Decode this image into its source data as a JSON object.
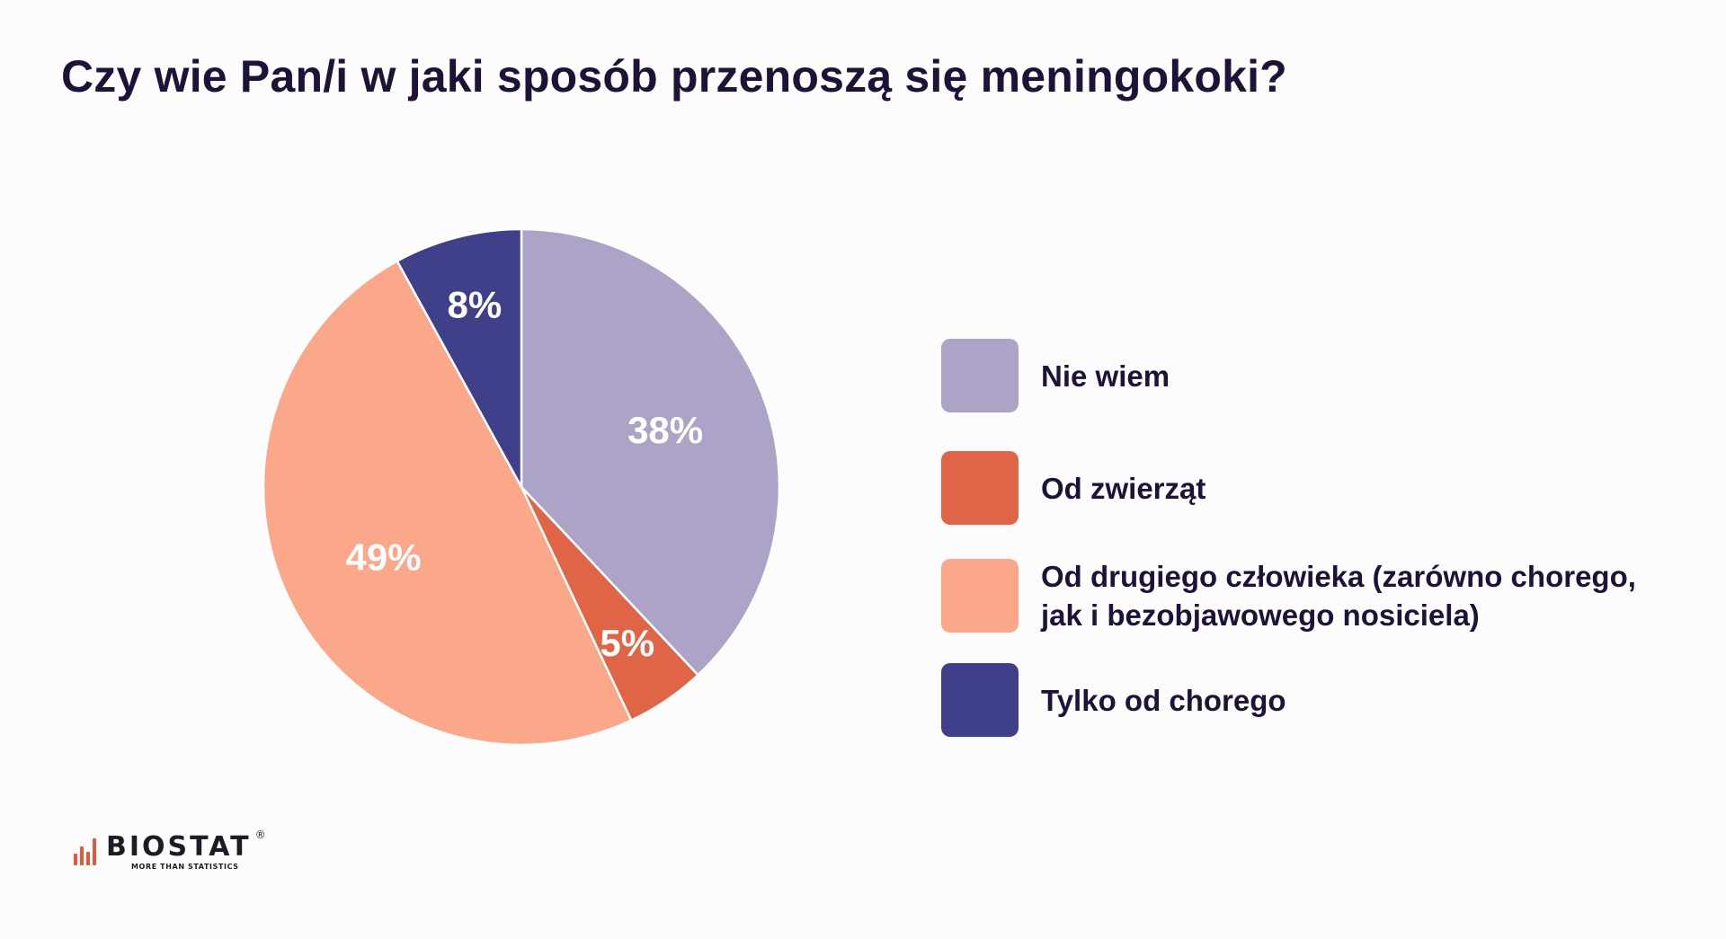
{
  "title": "Czy wie Pan/i w jaki sposób przenoszą się meningokoki?",
  "chart_data": {
    "type": "pie",
    "title": "Czy wie Pan/i w jaki sposób przenoszą się meningokoki?",
    "categories": [
      "Nie wiem",
      "Od zwierząt",
      "Od drugiego człowieka (zarówno chorego, jak i bezobjawowego nosiciela)",
      "Tylko od chorego"
    ],
    "values": [
      38,
      5,
      49,
      8
    ],
    "value_labels": [
      "38%",
      "5%",
      "49%",
      "8%"
    ],
    "colors": [
      "#ada3c6",
      "#e06446",
      "#fba78a",
      "#40408a"
    ],
    "start": "12 o'clock",
    "direction": "clockwise",
    "legend_position": "right",
    "legend_lines": [
      [
        "Nie wiem"
      ],
      [
        "Od zwierząt"
      ],
      [
        "Od drugiego człowieka (zarówno chorego,",
        "jak i bezobjawowego nosiciela)"
      ],
      [
        "Tylko od chorego"
      ]
    ]
  },
  "logo": {
    "name": "BIOSTAT",
    "tagline": "MORE THAN STATISTICS",
    "registered": "®",
    "bar_color": "#e05a3a"
  }
}
